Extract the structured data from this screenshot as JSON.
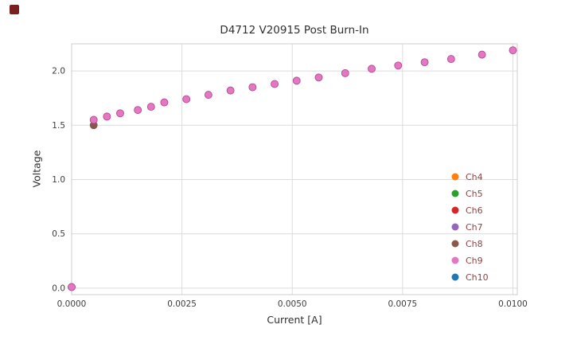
{
  "chart_data": {
    "type": "scatter",
    "title": "D4712 V20915 Post Burn-In",
    "xlabel": "Current [A]",
    "ylabel": "Voltage",
    "xlim": [
      0,
      0.0101
    ],
    "ylim": [
      -0.06,
      2.25
    ],
    "grid": true,
    "xticks": {
      "values": [
        0.0,
        0.0025,
        0.005,
        0.0075,
        0.01
      ],
      "labels": [
        "0.0000",
        "0.0025",
        "0.0050",
        "0.0075",
        "0.0100"
      ]
    },
    "yticks": {
      "values": [
        0.0,
        0.5,
        1.0,
        1.5,
        2.0
      ],
      "labels": [
        "0.0",
        "0.5",
        "1.0",
        "1.5",
        "2.0"
      ]
    },
    "legend": {
      "position": "lower right",
      "entries": [
        {
          "label": "Ch4",
          "color": "#ff7f0e"
        },
        {
          "label": "Ch5",
          "color": "#2ca02c"
        },
        {
          "label": "Ch6",
          "color": "#d62728"
        },
        {
          "label": "Ch7",
          "color": "#9467bd"
        },
        {
          "label": "Ch8",
          "color": "#8c564b"
        },
        {
          "label": "Ch9",
          "color": "#e377c2"
        },
        {
          "label": "Ch10",
          "color": "#1f77b4"
        }
      ]
    },
    "series": [
      {
        "name": "Ch9",
        "color": "#e377c2",
        "edge_color": "#b54a93",
        "points": [
          [
            0.0,
            0.01
          ],
          [
            0.0005,
            1.55
          ],
          [
            0.0008,
            1.58
          ],
          [
            0.0011,
            1.61
          ],
          [
            0.0015,
            1.64
          ],
          [
            0.0018,
            1.67
          ],
          [
            0.0021,
            1.71
          ],
          [
            0.0026,
            1.74
          ],
          [
            0.0031,
            1.78
          ],
          [
            0.0036,
            1.82
          ],
          [
            0.0041,
            1.85
          ],
          [
            0.0046,
            1.88
          ],
          [
            0.0051,
            1.91
          ],
          [
            0.0056,
            1.94
          ],
          [
            0.0062,
            1.98
          ],
          [
            0.0068,
            2.02
          ],
          [
            0.0074,
            2.05
          ],
          [
            0.008,
            2.08
          ],
          [
            0.0086,
            2.11
          ],
          [
            0.0093,
            2.15
          ],
          [
            0.01,
            2.19
          ]
        ]
      }
    ],
    "underlay_points": [
      {
        "x": 0.0005,
        "y": 1.5,
        "color": "#8c564b"
      },
      {
        "x": 0.0,
        "y": 0.01,
        "color": "#9467bd"
      }
    ]
  },
  "colors": {
    "grid": "#dcdcdc",
    "plot_border": "#cccccc",
    "tick_label": "#3d3d3d",
    "legend_text": "#8f4444",
    "corner_marker": "#7a1f1f",
    "background": "#ffffff"
  }
}
